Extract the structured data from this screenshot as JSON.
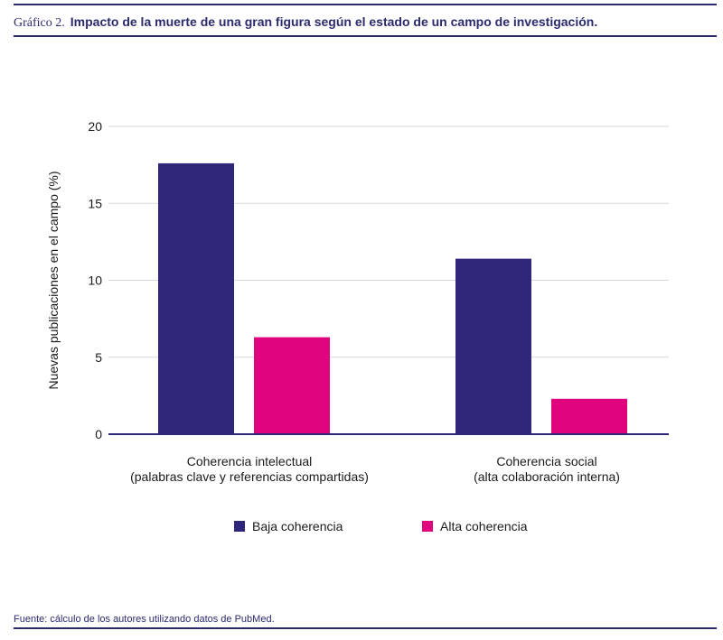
{
  "header": {
    "label": "Gráfico 2.",
    "title": "Impacto de la muerte de una gran figura según el estado de un campo de investigación."
  },
  "chart_data": {
    "type": "bar",
    "categories": [
      [
        "Coherencia intelectual",
        "(palabras clave y referencias compartidas)"
      ],
      [
        "Coherencia social",
        "(alta colaboración interna)"
      ]
    ],
    "series": [
      {
        "name": "Baja coherencia",
        "color": "#2d2679",
        "values": [
          17.6,
          11.4
        ]
      },
      {
        "name": "Alta coherencia",
        "color": "#e0047f",
        "values": [
          6.3,
          2.3
        ]
      }
    ],
    "ylabel": "Nuevas publicaciones en el campo (%)",
    "ylim": [
      0,
      20
    ],
    "yticks": [
      0,
      5,
      10,
      15,
      20
    ],
    "grid": true,
    "legend_position": "bottom-center"
  },
  "footer": {
    "source": "Fuente: cálculo de los autores utilizando datos de PubMed."
  }
}
